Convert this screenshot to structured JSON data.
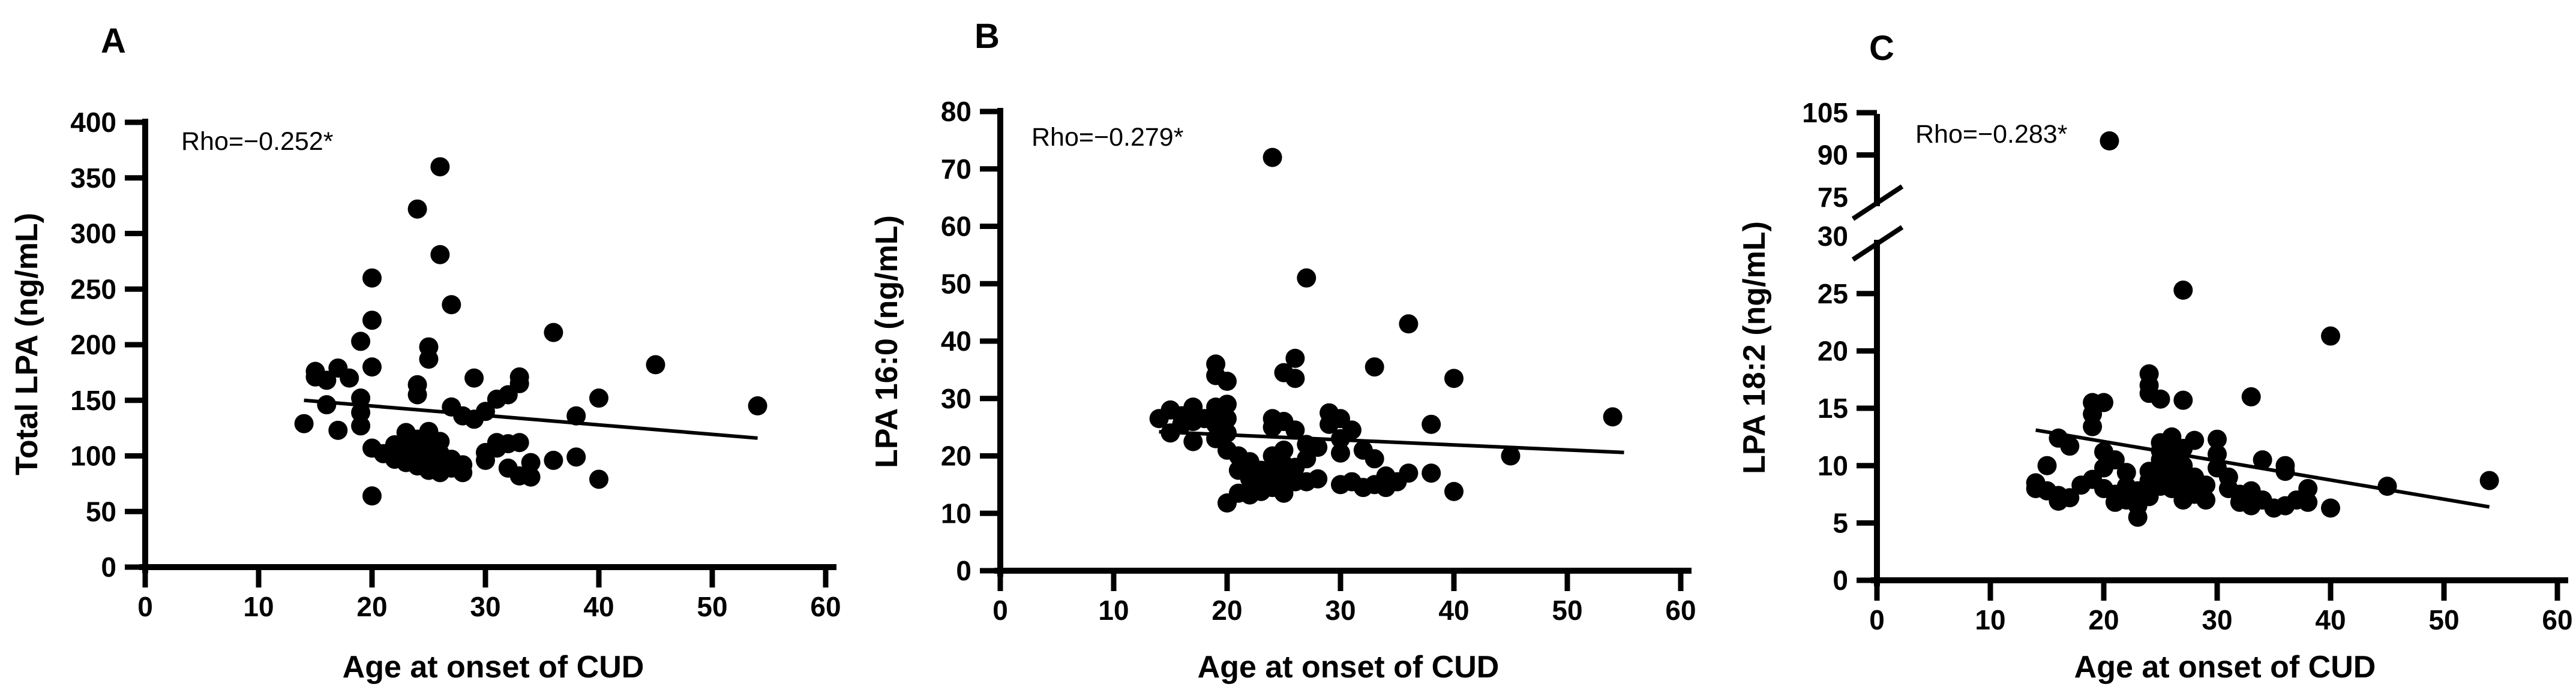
{
  "figure": {
    "background_color": "#ffffff",
    "ink_color": "#000000",
    "shared_xlabel": "Age at onset of CUD"
  },
  "chart_data": [
    {
      "type": "scatter",
      "panel_label": "A",
      "annotation": "Rho=−0.252*",
      "xlabel": "Age at onset of CUD",
      "ylabel": "Total LPA (ng/mL)",
      "xlim": [
        0,
        60
      ],
      "xticks": [
        0,
        10,
        20,
        30,
        40,
        50,
        60
      ],
      "ylim": [
        0,
        400
      ],
      "yticks": [
        0,
        50,
        100,
        150,
        200,
        250,
        300,
        350,
        400
      ],
      "grid": false,
      "marker_color": "#000000",
      "trendline": {
        "x": [
          14,
          54
        ],
        "y": [
          150,
          116
        ]
      },
      "points": [
        [
          26,
          360
        ],
        [
          24,
          322
        ],
        [
          26,
          281
        ],
        [
          20,
          260
        ],
        [
          27,
          236
        ],
        [
          20,
          222
        ],
        [
          36,
          211
        ],
        [
          19,
          203
        ],
        [
          25,
          198
        ],
        [
          25,
          187
        ],
        [
          45,
          182
        ],
        [
          17,
          179
        ],
        [
          20,
          180
        ],
        [
          15,
          176
        ],
        [
          15,
          171
        ],
        [
          18,
          170
        ],
        [
          16,
          168
        ],
        [
          29,
          170
        ],
        [
          33,
          171
        ],
        [
          33,
          165
        ],
        [
          24,
          164
        ],
        [
          24,
          155
        ],
        [
          19,
          152
        ],
        [
          40,
          152
        ],
        [
          32,
          155
        ],
        [
          31,
          151
        ],
        [
          54,
          145
        ],
        [
          16,
          146
        ],
        [
          19,
          139
        ],
        [
          27,
          144
        ],
        [
          28,
          136
        ],
        [
          29,
          133
        ],
        [
          30,
          140
        ],
        [
          38,
          136
        ],
        [
          14,
          129
        ],
        [
          17,
          123
        ],
        [
          19,
          127
        ],
        [
          23,
          121
        ],
        [
          24,
          115
        ],
        [
          25,
          122
        ],
        [
          26,
          113
        ],
        [
          20,
          107
        ],
        [
          21,
          102
        ],
        [
          22,
          110
        ],
        [
          22,
          97
        ],
        [
          23,
          94
        ],
        [
          23,
          105
        ],
        [
          24,
          99
        ],
        [
          24,
          91
        ],
        [
          25,
          96
        ],
        [
          25,
          87
        ],
        [
          25,
          107
        ],
        [
          26,
          94
        ],
        [
          26,
          85
        ],
        [
          26,
          102
        ],
        [
          27,
          89
        ],
        [
          27,
          97
        ],
        [
          28,
          85
        ],
        [
          28,
          92
        ],
        [
          30,
          103
        ],
        [
          30,
          96
        ],
        [
          31,
          112
        ],
        [
          31,
          107
        ],
        [
          32,
          111
        ],
        [
          33,
          112
        ],
        [
          32,
          89
        ],
        [
          33,
          82
        ],
        [
          34,
          94
        ],
        [
          34,
          81
        ],
        [
          36,
          96
        ],
        [
          38,
          99
        ],
        [
          40,
          79
        ],
        [
          20,
          64
        ]
      ]
    },
    {
      "type": "scatter",
      "panel_label": "B",
      "annotation": "Rho=−0.279*",
      "xlabel": "Age at onset of CUD",
      "ylabel": "LPA 16:0 (ng/mL)",
      "xlim": [
        0,
        60
      ],
      "xticks": [
        0,
        10,
        20,
        30,
        40,
        50,
        60
      ],
      "ylim": [
        0,
        80
      ],
      "yticks": [
        0,
        10,
        20,
        30,
        40,
        50,
        60,
        70,
        80
      ],
      "grid": false,
      "marker_color": "#000000",
      "trendline": {
        "x": [
          14,
          55
        ],
        "y": [
          24.2,
          20.6
        ]
      },
      "points": [
        [
          24,
          72
        ],
        [
          27,
          51
        ],
        [
          36,
          43
        ],
        [
          33,
          35.5
        ],
        [
          26,
          37
        ],
        [
          25,
          34.5
        ],
        [
          26,
          33.5
        ],
        [
          19,
          36
        ],
        [
          19,
          34
        ],
        [
          20,
          33
        ],
        [
          40,
          33.5
        ],
        [
          54,
          26.8
        ],
        [
          14,
          26.5
        ],
        [
          15,
          28
        ],
        [
          15,
          24
        ],
        [
          16,
          27
        ],
        [
          16,
          25.5
        ],
        [
          17,
          28.5
        ],
        [
          17,
          26
        ],
        [
          17,
          22.5
        ],
        [
          18,
          26.5
        ],
        [
          19,
          28.5
        ],
        [
          19,
          25.5
        ],
        [
          19,
          23
        ],
        [
          20,
          29
        ],
        [
          20,
          26.5
        ],
        [
          20,
          24
        ],
        [
          20,
          21
        ],
        [
          21,
          20
        ],
        [
          21,
          17.5
        ],
        [
          21,
          13.5
        ],
        [
          20,
          11.8
        ],
        [
          22,
          19
        ],
        [
          22,
          16
        ],
        [
          22,
          13.2
        ],
        [
          23,
          17.5
        ],
        [
          23,
          15.5
        ],
        [
          23,
          13.8
        ],
        [
          24,
          26.5
        ],
        [
          24,
          25
        ],
        [
          24,
          20
        ],
        [
          24,
          17
        ],
        [
          24,
          14.5
        ],
        [
          25,
          26
        ],
        [
          25,
          21
        ],
        [
          25,
          18.5
        ],
        [
          25,
          16
        ],
        [
          25,
          13.5
        ],
        [
          26,
          24.5
        ],
        [
          26,
          18
        ],
        [
          26,
          15.5
        ],
        [
          27,
          22
        ],
        [
          27,
          19.5
        ],
        [
          27,
          15.5
        ],
        [
          28,
          21.5
        ],
        [
          28,
          16
        ],
        [
          29,
          27.5
        ],
        [
          29,
          25.5
        ],
        [
          30,
          26.5
        ],
        [
          30,
          23
        ],
        [
          30,
          20.5
        ],
        [
          30,
          15
        ],
        [
          31,
          24.5
        ],
        [
          31,
          15.5
        ],
        [
          32,
          21
        ],
        [
          32,
          14.5
        ],
        [
          33,
          19.5
        ],
        [
          33,
          15
        ],
        [
          34,
          16.5
        ],
        [
          34,
          14.5
        ],
        [
          35,
          15.5
        ],
        [
          36,
          17
        ],
        [
          38,
          25.5
        ],
        [
          38,
          17
        ],
        [
          40,
          13.8
        ],
        [
          45,
          20
        ]
      ]
    },
    {
      "type": "scatter",
      "panel_label": "C",
      "annotation": "Rho=−0.283*",
      "xlabel": "Age at onset of CUD",
      "ylabel": "LPA 18:2 (ng/mL)",
      "xlim": [
        0,
        60
      ],
      "xticks": [
        0,
        10,
        20,
        30,
        40,
        50,
        60
      ],
      "ylim": [
        0,
        105
      ],
      "axis_break": {
        "lower_max": 30,
        "upper_min": 75,
        "upper_max": 105
      },
      "yticks_lower": [
        0,
        5,
        10,
        15,
        20,
        25,
        30
      ],
      "yticks_upper": [
        75,
        90,
        105
      ],
      "break_values_without_tick": [
        30,
        75
      ],
      "grid": false,
      "marker_color": "#000000",
      "trendline": {
        "x": [
          14,
          54
        ],
        "y": [
          13.1,
          6.4
        ]
      },
      "points": [
        [
          20.5,
          95
        ],
        [
          27,
          25.3
        ],
        [
          40,
          21.3
        ],
        [
          24,
          18
        ],
        [
          24,
          17
        ],
        [
          24,
          16.3
        ],
        [
          25,
          15.8
        ],
        [
          33,
          16
        ],
        [
          27,
          15.7
        ],
        [
          19,
          15.5
        ],
        [
          20,
          15.5
        ],
        [
          19,
          14.5
        ],
        [
          19,
          13.4
        ],
        [
          16,
          12.4
        ],
        [
          17,
          11.7
        ],
        [
          20,
          11.2
        ],
        [
          21,
          10.5
        ],
        [
          15,
          10
        ],
        [
          20,
          9.8
        ],
        [
          22,
          9.4
        ],
        [
          14,
          8.5
        ],
        [
          14,
          8
        ],
        [
          15,
          7.8
        ],
        [
          16,
          7.4
        ],
        [
          16,
          6.9
        ],
        [
          17,
          7.2
        ],
        [
          18,
          8.3
        ],
        [
          19,
          8.8
        ],
        [
          20,
          8
        ],
        [
          21,
          7.5
        ],
        [
          21,
          6.8
        ],
        [
          22,
          8.2
        ],
        [
          22,
          7
        ],
        [
          23,
          7.8
        ],
        [
          23,
          5.5
        ],
        [
          23,
          6.5
        ],
        [
          24,
          9.5
        ],
        [
          24,
          8.7
        ],
        [
          24,
          7.3
        ],
        [
          25,
          12
        ],
        [
          25,
          11.3
        ],
        [
          25,
          10.5
        ],
        [
          25,
          9.7
        ],
        [
          25,
          8.9
        ],
        [
          25,
          8.2
        ],
        [
          26,
          12.5
        ],
        [
          26,
          11.7
        ],
        [
          26,
          10.8
        ],
        [
          26,
          9.3
        ],
        [
          26,
          8
        ],
        [
          27,
          11.5
        ],
        [
          27,
          10
        ],
        [
          27,
          8.5
        ],
        [
          27,
          7
        ],
        [
          28,
          12.2
        ],
        [
          28,
          9
        ],
        [
          28,
          7.5
        ],
        [
          29,
          8.3
        ],
        [
          29,
          7
        ],
        [
          30,
          12.3
        ],
        [
          30,
          11
        ],
        [
          30,
          9.8
        ],
        [
          31,
          9
        ],
        [
          31,
          8
        ],
        [
          32,
          7.5
        ],
        [
          32,
          6.8
        ],
        [
          33,
          7.8
        ],
        [
          33,
          6.5
        ],
        [
          34,
          10.5
        ],
        [
          34,
          7
        ],
        [
          35,
          6.3
        ],
        [
          36,
          10
        ],
        [
          36,
          9.5
        ],
        [
          36,
          6.5
        ],
        [
          37,
          7
        ],
        [
          38,
          8
        ],
        [
          38,
          6.8
        ],
        [
          40,
          6.3
        ],
        [
          45,
          8.2
        ],
        [
          54,
          8.7
        ]
      ]
    }
  ]
}
